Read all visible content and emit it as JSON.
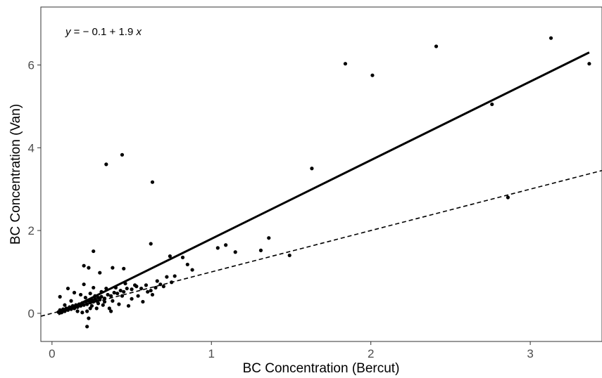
{
  "chart_data": {
    "type": "scatter",
    "xlabel": "BC Concentration (Bercut)",
    "ylabel": "BC Concentration (Van)",
    "xlim": [
      -0.07,
      3.45
    ],
    "ylim": [
      -0.68,
      7.4
    ],
    "xticks": [
      "0",
      "1",
      "2",
      "3"
    ],
    "xtick_values": [
      0,
      1,
      2,
      3
    ],
    "yticks": [
      "0",
      "2",
      "4",
      "6"
    ],
    "ytick_values": [
      0,
      2,
      4,
      6
    ],
    "grid": false,
    "annotation": {
      "var_y": "y",
      "mid": " = − 0.1 + 1.9 ",
      "var_x": "x"
    },
    "fit_line": {
      "intercept": -0.1,
      "slope": 1.9,
      "x_start": 0.04,
      "x_end": 3.37,
      "style": "solid"
    },
    "reference_line": {
      "intercept": 0,
      "slope": 1,
      "style": "dashed"
    },
    "points": [
      [
        0.04,
        0.03
      ],
      [
        0.05,
        0.08
      ],
      [
        0.06,
        0.02
      ],
      [
        0.07,
        0.1
      ],
      [
        0.08,
        0.05
      ],
      [
        0.09,
        0.12
      ],
      [
        0.1,
        0.08
      ],
      [
        0.11,
        0.15
      ],
      [
        0.12,
        0.1
      ],
      [
        0.13,
        0.18
      ],
      [
        0.14,
        0.12
      ],
      [
        0.15,
        0.2
      ],
      [
        0.16,
        0.15
      ],
      [
        0.17,
        0.22
      ],
      [
        0.18,
        0.18
      ],
      [
        0.19,
        0.25
      ],
      [
        0.2,
        0.2
      ],
      [
        0.21,
        0.28
      ],
      [
        0.22,
        0.22
      ],
      [
        0.23,
        0.3
      ],
      [
        0.24,
        0.26
      ],
      [
        0.25,
        0.32
      ],
      [
        0.26,
        0.28
      ],
      [
        0.27,
        0.35
      ],
      [
        0.28,
        0.3
      ],
      [
        0.29,
        0.38
      ],
      [
        0.3,
        0.33
      ],
      [
        0.31,
        0.4
      ],
      [
        0.33,
        0.36
      ],
      [
        0.35,
        0.45
      ],
      [
        0.37,
        0.42
      ],
      [
        0.39,
        0.5
      ],
      [
        0.41,
        0.48
      ],
      [
        0.43,
        0.55
      ],
      [
        0.45,
        0.52
      ],
      [
        0.47,
        0.6
      ],
      [
        0.5,
        0.58
      ],
      [
        0.53,
        0.65
      ],
      [
        0.56,
        0.6
      ],
      [
        0.59,
        0.68
      ],
      [
        0.62,
        0.55
      ],
      [
        0.65,
        0.62
      ],
      [
        0.68,
        0.7
      ],
      [
        0.05,
        0.4
      ],
      [
        0.08,
        0.2
      ],
      [
        0.1,
        0.6
      ],
      [
        0.12,
        0.3
      ],
      [
        0.14,
        0.5
      ],
      [
        0.16,
        0.05
      ],
      [
        0.18,
        0.45
      ],
      [
        0.19,
        0.02
      ],
      [
        0.2,
        0.7
      ],
      [
        0.21,
        0.38
      ],
      [
        0.22,
        0.05
      ],
      [
        0.22,
        -0.32
      ],
      [
        0.23,
        -0.12
      ],
      [
        0.24,
        0.48
      ],
      [
        0.24,
        0.12
      ],
      [
        0.25,
        0.18
      ],
      [
        0.26,
        0.62
      ],
      [
        0.27,
        0.42
      ],
      [
        0.28,
        0.12
      ],
      [
        0.29,
        0.24
      ],
      [
        0.3,
        0.98
      ],
      [
        0.31,
        0.52
      ],
      [
        0.32,
        0.2
      ],
      [
        0.33,
        0.28
      ],
      [
        0.34,
        0.6
      ],
      [
        0.36,
        0.12
      ],
      [
        0.37,
        0.05
      ],
      [
        0.38,
        0.3
      ],
      [
        0.4,
        0.62
      ],
      [
        0.42,
        0.22
      ],
      [
        0.44,
        0.42
      ],
      [
        0.46,
        0.72
      ],
      [
        0.48,
        0.18
      ],
      [
        0.5,
        0.35
      ],
      [
        0.52,
        0.68
      ],
      [
        0.54,
        0.42
      ],
      [
        0.57,
        0.28
      ],
      [
        0.6,
        0.52
      ],
      [
        0.63,
        0.45
      ],
      [
        0.66,
        0.78
      ],
      [
        0.7,
        0.65
      ],
      [
        0.72,
        0.88
      ],
      [
        0.75,
        0.75
      ],
      [
        0.77,
        0.9
      ],
      [
        0.2,
        1.15
      ],
      [
        0.23,
        1.1
      ],
      [
        0.26,
        1.5
      ],
      [
        0.38,
        1.1
      ],
      [
        0.45,
        1.08
      ],
      [
        0.62,
        1.68
      ],
      [
        0.74,
        1.38
      ],
      [
        0.82,
        1.35
      ],
      [
        0.85,
        1.18
      ],
      [
        0.88,
        1.05
      ],
      [
        1.04,
        1.58
      ],
      [
        1.09,
        1.65
      ],
      [
        1.15,
        1.48
      ],
      [
        1.31,
        1.52
      ],
      [
        1.36,
        1.82
      ],
      [
        1.49,
        1.4
      ],
      [
        1.63,
        3.5
      ],
      [
        1.84,
        6.03
      ],
      [
        2.01,
        5.75
      ],
      [
        2.41,
        6.45
      ],
      [
        2.76,
        5.05
      ],
      [
        2.86,
        2.8
      ],
      [
        3.13,
        6.65
      ],
      [
        3.37,
        6.03
      ],
      [
        0.34,
        3.6
      ],
      [
        0.44,
        3.83
      ],
      [
        0.63,
        3.17
      ]
    ]
  }
}
